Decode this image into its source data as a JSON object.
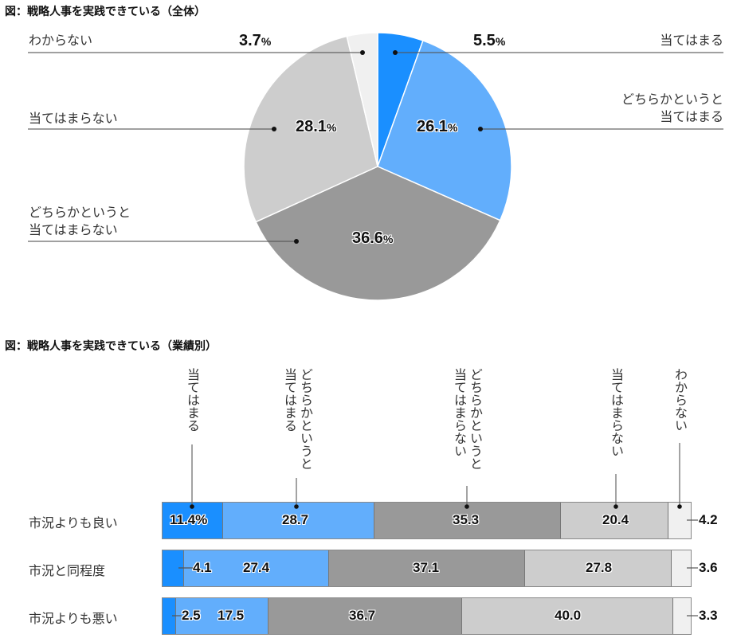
{
  "titles": {
    "pie": "図：戦略人事を実践できている（全体）",
    "bar": "図：戦略人事を実践できている（業績別）"
  },
  "colors": {
    "atehamaru": "#1a8fff",
    "dochiraka_atehamaru": "#62aefc",
    "dochiraka_atehamaranai": "#999999",
    "atehamaranai": "#cdcdcd",
    "wakaranai": "#f0f0f0"
  },
  "pie": {
    "labels": {
      "wakaranai": "わからない",
      "atehamaranai": "当てはまらない",
      "dochiraka_atehamaranai_1": "どちらかというと",
      "dochiraka_atehamaranai_2": "当てはまらない",
      "atehamaru": "当てはまる",
      "dochiraka_atehamaru_1": "どちらかというと",
      "dochiraka_atehamaru_2": "当てはまる"
    },
    "values": {
      "atehamaru": "5.5",
      "dochiraka_atehamaru": "26.1",
      "dochiraka_atehamaranai": "36.6",
      "atehamaranai": "28.1",
      "wakaranai": "3.7"
    },
    "pct_sign": "%"
  },
  "bar": {
    "column_labels": {
      "atehamaru": "当てはまる",
      "dochiraka_atehamaru": "どちらかというと\n当てはまる",
      "dochiraka_atehamaranai": "どちらかというと\n当てはまらない",
      "atehamaranai": "当てはまらない",
      "wakaranai": "わからない"
    },
    "rows": [
      {
        "label": "市況よりも良い",
        "values": [
          "11.4",
          "28.7",
          "35.3",
          "20.4",
          "4.2"
        ],
        "first_suffix": "%"
      },
      {
        "label": "市況と同程度",
        "values": [
          "4.1",
          "27.4",
          "37.1",
          "27.8",
          "3.6"
        ]
      },
      {
        "label": "市況よりも悪い",
        "values": [
          "2.5",
          "17.5",
          "36.7",
          "40.0",
          "3.3"
        ]
      }
    ]
  },
  "chart_data": [
    {
      "type": "pie",
      "title": "図：戦略人事を実践できている（全体）",
      "categories": [
        "当てはまる",
        "どちらかというと当てはまる",
        "どちらかというと当てはまらない",
        "当てはまらない",
        "わからない"
      ],
      "values": [
        5.5,
        26.1,
        36.6,
        28.1,
        3.7
      ],
      "unit": "%",
      "colors": [
        "#1a8fff",
        "#62aefc",
        "#999999",
        "#cdcdcd",
        "#f0f0f0"
      ]
    },
    {
      "type": "bar",
      "orientation": "horizontal",
      "stacked": "100%",
      "title": "図：戦略人事を実践できている（業績別）",
      "categories": [
        "市況よりも良い",
        "市況と同程度",
        "市況よりも悪い"
      ],
      "series": [
        {
          "name": "当てはまる",
          "values": [
            11.4,
            4.1,
            2.5
          ]
        },
        {
          "name": "どちらかというと当てはまる",
          "values": [
            28.7,
            27.4,
            17.5
          ]
        },
        {
          "name": "どちらかというと当てはまらない",
          "values": [
            35.3,
            37.1,
            36.7
          ]
        },
        {
          "name": "当てはまらない",
          "values": [
            20.4,
            27.8,
            40.0
          ]
        },
        {
          "name": "わからない",
          "values": [
            4.2,
            3.6,
            3.3
          ]
        }
      ],
      "unit": "%",
      "legend_position": "top (vertical labels with leader lines)"
    }
  ]
}
